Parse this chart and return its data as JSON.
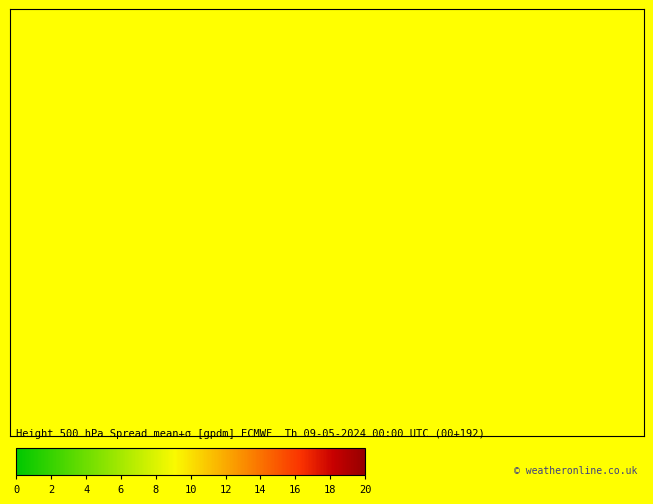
{
  "title_line1": "Height 500 hPa Spread mean+σ [gpdm] ECMWF",
  "title_line2": "Th 09-05-2024 00:00 UTC (00+192)",
  "copyright": "© weatheronline.co.uk",
  "colorbar_ticks": [
    0,
    2,
    4,
    6,
    8,
    10,
    12,
    14,
    16,
    18,
    20
  ],
  "colorbar_colors": [
    "#00c800",
    "#32d200",
    "#64dc00",
    "#96e600",
    "#c8f000",
    "#fafa00",
    "#fac800",
    "#fa9600",
    "#fa6400",
    "#fa3200",
    "#c80000",
    "#960000"
  ],
  "bg_color": "#ffff00",
  "map_extent": [
    6.0,
    20.0,
    36.0,
    48.0
  ],
  "figsize": [
    6.34,
    4.9
  ],
  "dpi": 100
}
